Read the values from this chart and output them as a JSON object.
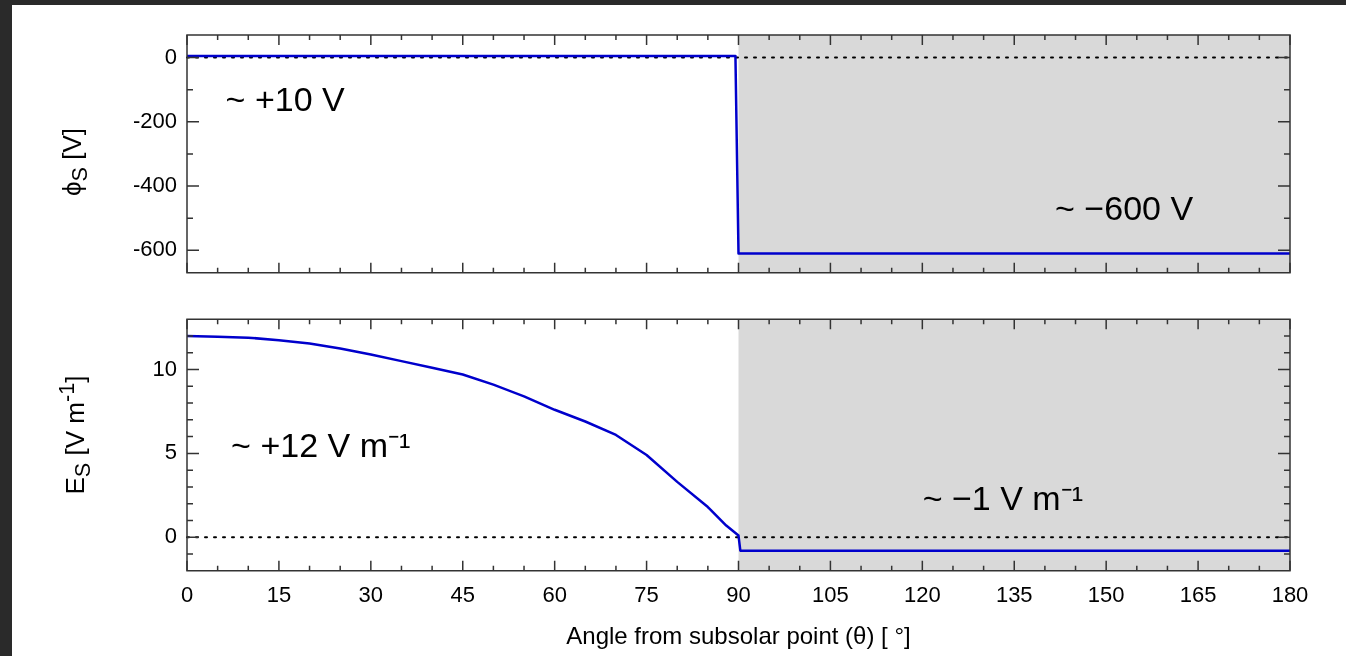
{
  "chart_data": [
    {
      "type": "line",
      "ylabel": "ϕ$_{S}$ [V]",
      "x": [
        0,
        89.5,
        90,
        180
      ],
      "series": [
        {
          "color": "#0000cc",
          "values": [
            5,
            5,
            -610,
            -610
          ]
        }
      ],
      "xlim": [
        0,
        180
      ],
      "xticks": [
        0,
        {
          "value": 5,
          "label": null
        },
        {
          "value": 10,
          "label": null
        },
        15,
        {
          "value": 20,
          "label": null
        },
        {
          "value": 25,
          "label": null
        },
        30,
        {
          "value": 35,
          "label": null
        },
        {
          "value": 40,
          "label": null
        },
        45,
        {
          "value": 50,
          "label": null
        },
        {
          "value": 55,
          "label": null
        },
        60,
        {
          "value": 65,
          "label": null
        },
        {
          "value": 70,
          "label": null
        },
        75,
        {
          "value": 80,
          "label": null
        },
        {
          "value": 85,
          "label": null
        },
        90,
        {
          "value": 95,
          "label": null
        },
        {
          "value": 100,
          "label": null
        },
        105,
        {
          "value": 110,
          "label": null
        },
        {
          "value": 115,
          "label": null
        },
        120,
        {
          "value": 125,
          "label": null
        },
        {
          "value": 130,
          "label": null
        },
        135,
        {
          "value": 140,
          "label": null
        },
        {
          "value": 145,
          "label": null
        },
        150,
        {
          "value": 155,
          "label": null
        },
        {
          "value": 160,
          "label": null
        },
        165,
        {
          "value": 170,
          "label": null
        },
        {
          "value": 175,
          "label": null
        },
        180
      ],
      "ylim": [
        -670,
        70
      ],
      "yticks": [
        -600,
        {
          "value": -500,
          "label": null
        },
        -400,
        {
          "value": -300,
          "label": null
        },
        -200,
        {
          "value": -100,
          "label": null
        },
        0
      ],
      "tick_labels": "y",
      "marker": "none",
      "grid": false,
      "legend": false,
      "bands": [
        {
          "axis": "x",
          "from": 90,
          "to": 180,
          "color": "#d9d9d9"
        }
      ],
      "ref_lines": [
        {
          "axis": "y",
          "value": 0,
          "color": "#000000",
          "line_style": "dotted"
        }
      ],
      "annotations": [
        "~ +10 V",
        "~ −600 V"
      ]
    },
    {
      "type": "line",
      "ylabel": "E$_{S}$ [V m$^{-1}$]",
      "xlabel": "Angle from subsolar point (θ) [ °]",
      "x": [
        0,
        5,
        10,
        15,
        20,
        25,
        30,
        35,
        40,
        45,
        50,
        55,
        60,
        65,
        70,
        75,
        80,
        85,
        88,
        90,
        90.3,
        180
      ],
      "series": [
        {
          "color": "#0000cc",
          "values": [
            12,
            11.95,
            11.9,
            11.75,
            11.55,
            11.25,
            10.9,
            10.5,
            10.1,
            9.7,
            9.1,
            8.4,
            7.6,
            6.9,
            6.1,
            4.9,
            3.3,
            1.8,
            0.7,
            0.1,
            -0.8,
            -0.8
          ]
        }
      ],
      "xlim": [
        0,
        180
      ],
      "xticks": [
        0,
        {
          "value": 5,
          "label": null
        },
        {
          "value": 10,
          "label": null
        },
        15,
        {
          "value": 20,
          "label": null
        },
        {
          "value": 25,
          "label": null
        },
        30,
        {
          "value": 35,
          "label": null
        },
        {
          "value": 40,
          "label": null
        },
        45,
        {
          "value": 50,
          "label": null
        },
        {
          "value": 55,
          "label": null
        },
        60,
        {
          "value": 65,
          "label": null
        },
        {
          "value": 70,
          "label": null
        },
        75,
        {
          "value": 80,
          "label": null
        },
        {
          "value": 85,
          "label": null
        },
        90,
        {
          "value": 95,
          "label": null
        },
        {
          "value": 100,
          "label": null
        },
        105,
        {
          "value": 110,
          "label": null
        },
        {
          "value": 115,
          "label": null
        },
        120,
        {
          "value": 125,
          "label": null
        },
        {
          "value": 130,
          "label": null
        },
        135,
        {
          "value": 140,
          "label": null
        },
        {
          "value": 145,
          "label": null
        },
        150,
        {
          "value": 155,
          "label": null
        },
        {
          "value": 160,
          "label": null
        },
        165,
        {
          "value": 170,
          "label": null
        },
        {
          "value": 175,
          "label": null
        },
        180
      ],
      "ylim": [
        -2,
        13
      ],
      "yticks": [
        {
          "value": -1,
          "label": null
        },
        0,
        {
          "value": 1,
          "label": null
        },
        {
          "value": 2,
          "label": null
        },
        {
          "value": 3,
          "label": null
        },
        {
          "value": 4,
          "label": null
        },
        5,
        {
          "value": 6,
          "label": null
        },
        {
          "value": 7,
          "label": null
        },
        {
          "value": 8,
          "label": null
        },
        {
          "value": 9,
          "label": null
        },
        10,
        {
          "value": 11,
          "label": null
        },
        {
          "value": 12,
          "label": null
        }
      ],
      "marker": "none",
      "grid": false,
      "legend": false,
      "bands": [
        {
          "axis": "x",
          "from": 90,
          "to": 180,
          "color": "#d9d9d9"
        }
      ],
      "ref_lines": [
        {
          "axis": "y",
          "value": 0,
          "color": "#000000",
          "line_style": "dotted"
        }
      ],
      "annotations": [
        "~ +12 V m⁻¹",
        "~ −1 V m⁻¹"
      ]
    }
  ]
}
